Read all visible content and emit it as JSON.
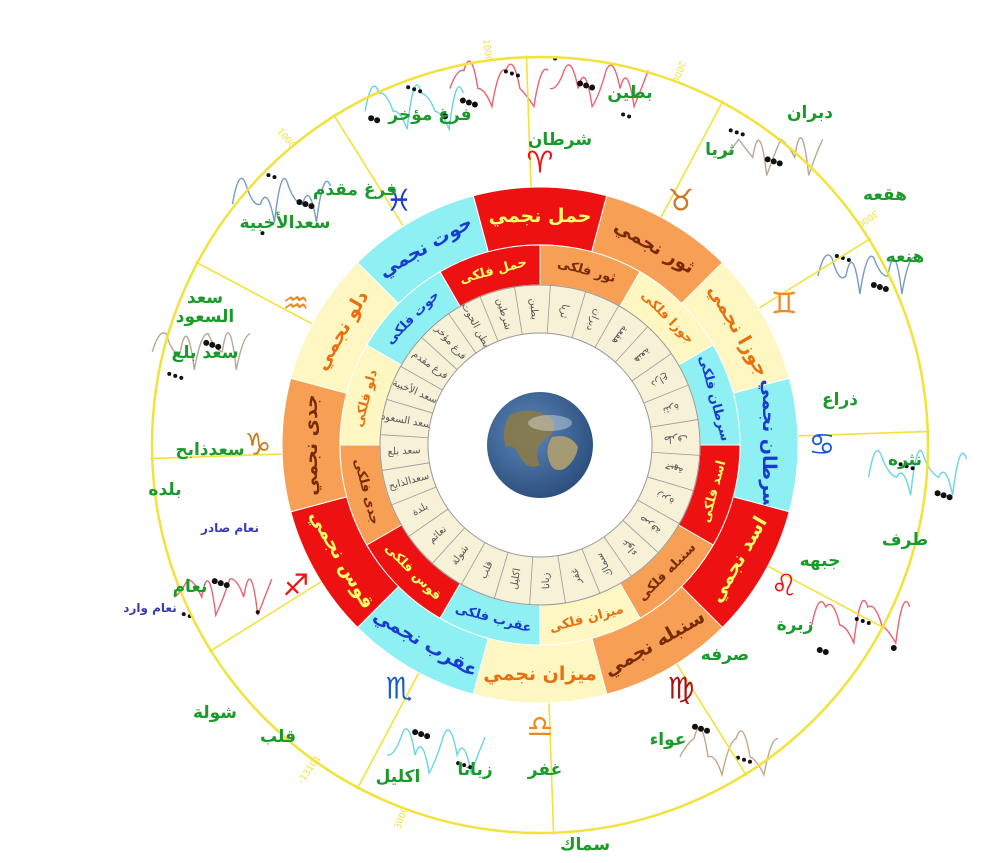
{
  "colors": {
    "outer_circle": "#f2e23a",
    "spoke": "#f2e23a",
    "label_green": "#1a9a2a",
    "label_blue": "#2a2ab0",
    "red": "#ee1111",
    "orange": "#f7a055",
    "cream": "#fff7c2",
    "cyan": "#8ef0f2",
    "mansion_bg": "#f7f1d8",
    "mansion_stroke": "#999999",
    "earth_ocean": "#2c4f7e",
    "earth_land": "#8a7a4a"
  },
  "outer_ring": {
    "segments": [
      {
        "label": "حمل نجمي",
        "color": "red",
        "text_color": "#ffff66"
      },
      {
        "label": "ثور نجمي",
        "color": "orange",
        "text_color": "#7a2a00"
      },
      {
        "label": "جوزا نجمي",
        "color": "cream",
        "text_color": "#e87010"
      },
      {
        "label": "سرطان نجمي",
        "color": "cyan",
        "text_color": "#1a3ad0"
      },
      {
        "label": "اسد نجمي",
        "color": "red",
        "text_color": "#ffff66"
      },
      {
        "label": "سنبله نجمي",
        "color": "orange",
        "text_color": "#7a2a00"
      },
      {
        "label": "ميزان نجمي",
        "color": "cream",
        "text_color": "#e87010"
      },
      {
        "label": "عقرب نجمي",
        "color": "cyan",
        "text_color": "#1a3ad0"
      },
      {
        "label": "قوس نجمي",
        "color": "red",
        "text_color": "#ffff66"
      },
      {
        "label": "جدى نجمي",
        "color": "orange",
        "text_color": "#7a2a00"
      },
      {
        "label": "دلو نجمي",
        "color": "cream",
        "text_color": "#e87010"
      },
      {
        "label": "حوت نجمي",
        "color": "cyan",
        "text_color": "#1a3ad0"
      }
    ]
  },
  "inner_ring": {
    "segments": [
      {
        "label": "حمل فلكى",
        "color": "red",
        "text_color": "#ffff66"
      },
      {
        "label": "ثور فلكى",
        "color": "orange",
        "text_color": "#7a2a00"
      },
      {
        "label": "جوزا فلكى",
        "color": "cream",
        "text_color": "#e87010"
      },
      {
        "label": "سرطان فلكى",
        "color": "cyan",
        "text_color": "#1a3ad0"
      },
      {
        "label": "اسد فلكى",
        "color": "red",
        "text_color": "#ffff66"
      },
      {
        "label": "سنبله فلكى",
        "color": "orange",
        "text_color": "#7a2a00"
      },
      {
        "label": "ميزان فلكى",
        "color": "cream",
        "text_color": "#e87010"
      },
      {
        "label": "عقرب فلكى",
        "color": "cyan",
        "text_color": "#1a3ad0"
      },
      {
        "label": "قوس فلكى",
        "color": "red",
        "text_color": "#ffff66"
      },
      {
        "label": "جدى فلكى",
        "color": "orange",
        "text_color": "#7a2a00"
      },
      {
        "label": "دلو فلكى",
        "color": "cream",
        "text_color": "#e87010"
      },
      {
        "label": "حوت فلكى",
        "color": "cyan",
        "text_color": "#1a3ad0"
      }
    ]
  },
  "mansions_ring": {
    "names": [
      "شرطين",
      "بطين",
      "ثريا",
      "دبران",
      "هقعة",
      "هنعة",
      "ذراع",
      "نثرة",
      "طرف",
      "جبهة",
      "زبرة",
      "صرفة",
      "عواء",
      "سماك",
      "غفر",
      "زبانا",
      "اكليل",
      "قلب",
      "شولة",
      "نعائم",
      "بلدة",
      "سعدالذابح",
      "سعد بلع",
      "سعد السعود",
      "سعد الأخبية",
      "فرغ مقدم",
      "فرغ مؤخر",
      "بطن الحوت"
    ]
  },
  "zodiac_symbols": [
    {
      "glyph": "♈",
      "color": "#ee1111"
    },
    {
      "glyph": "♉",
      "color": "#c87a20"
    },
    {
      "glyph": "♊",
      "color": "#f08a20"
    },
    {
      "glyph": "♋",
      "color": "#1a5ad0"
    },
    {
      "glyph": "♌",
      "color": "#ee1111"
    },
    {
      "glyph": "♍",
      "color": "#aa1111"
    },
    {
      "glyph": "♎",
      "color": "#f08a20"
    },
    {
      "glyph": "♏",
      "color": "#1a5ad0"
    },
    {
      "glyph": "♐",
      "color": "#ee1111"
    },
    {
      "glyph": "♑",
      "color": "#c87a20"
    },
    {
      "glyph": "♒",
      "color": "#f08a20"
    },
    {
      "glyph": "♓",
      "color": "#1a3ad0"
    }
  ],
  "outer_labels": [
    {
      "text": "بطين",
      "color": "#1a9a2a"
    },
    {
      "text": "شرطان",
      "color": "#1a9a2a"
    },
    {
      "text": "فرغ مؤخر",
      "color": "#1a9a2a"
    },
    {
      "text": "فرغ مقدم",
      "color": "#1a9a2a"
    },
    {
      "text": "سعدالأخبية",
      "color": "#1a9a2a"
    },
    {
      "text": "سعد",
      "color": "#1a9a2a"
    },
    {
      "text": "السعود",
      "color": "#1a9a2a"
    },
    {
      "text": "سعد بلع",
      "color": "#1a9a2a"
    },
    {
      "text": "سعدذابح",
      "color": "#1a9a2a"
    },
    {
      "text": "بلده",
      "color": "#1a9a2a"
    },
    {
      "text": "نعام صادر",
      "color": "#3a3ab0"
    },
    {
      "text": "نعام",
      "color": "#1a9a2a"
    },
    {
      "text": "نعام وارد",
      "color": "#3a3ab0"
    },
    {
      "text": "شولة",
      "color": "#1a9a2a"
    },
    {
      "text": "قلب",
      "color": "#1a9a2a"
    },
    {
      "text": "اكليل",
      "color": "#1a9a2a"
    },
    {
      "text": "زبانا",
      "color": "#1a9a2a"
    },
    {
      "text": "غفر",
      "color": "#1a9a2a"
    },
    {
      "text": "سماك",
      "color": "#1a9a2a"
    },
    {
      "text": "عواء",
      "color": "#1a9a2a"
    },
    {
      "text": "صرفه",
      "color": "#1a9a2a"
    },
    {
      "text": "زبرة",
      "color": "#1a9a2a"
    },
    {
      "text": "جبهه",
      "color": "#1a9a2a"
    },
    {
      "text": "طرف",
      "color": "#1a9a2a"
    },
    {
      "text": "نثره",
      "color": "#1a9a2a"
    },
    {
      "text": "ذراع",
      "color": "#1a9a2a"
    },
    {
      "text": "هنعه",
      "color": "#1a9a2a"
    },
    {
      "text": "هقعه",
      "color": "#1a9a2a"
    },
    {
      "text": "دبران",
      "color": "#1a9a2a"
    },
    {
      "text": "ثريا",
      "color": "#1a9a2a"
    }
  ],
  "circle_ticks": [
    "1000",
    "1000",
    "2000",
    "3000",
    "-13101",
    "3000"
  ]
}
